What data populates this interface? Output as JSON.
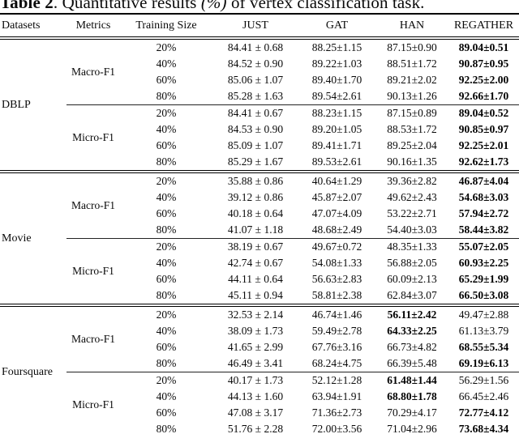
{
  "colors": {
    "background": "#ffffff",
    "ink": "#000000"
  },
  "title": {
    "bold": "Table 2",
    "mid": ". Quantitative results ",
    "pct": "(%)",
    "suffix": " of vertex classification task."
  },
  "table": {
    "headers": [
      "Datasets",
      "Metrics",
      "Training Size",
      "JUST",
      "GAT",
      "HAN",
      "REGATHER"
    ],
    "sections": [
      {
        "dataset": "DBLP",
        "blocks": [
          {
            "metric": "Macro-F1",
            "rows": [
              {
                "size": "20%",
                "values": [
                  "84.41 ± 0.68",
                  "88.25±1.15",
                  "87.15±0.90",
                  "89.04±0.51"
                ],
                "bold_index": 3
              },
              {
                "size": "40%",
                "values": [
                  "84.52 ± 0.90",
                  "89.22±1.03",
                  "88.51±1.72",
                  "90.87±0.95"
                ],
                "bold_index": 3
              },
              {
                "size": "60%",
                "values": [
                  "85.06 ± 1.07",
                  "89.40±1.70",
                  "89.21±2.02",
                  "92.25±2.00"
                ],
                "bold_index": 3
              },
              {
                "size": "80%",
                "values": [
                  "85.28 ± 1.63",
                  "89.54±2.61",
                  "90.13±1.26",
                  "92.66±1.70"
                ],
                "bold_index": 3
              }
            ]
          },
          {
            "metric": "Micro-F1",
            "rows": [
              {
                "size": "20%",
                "values": [
                  "84.41 ± 0.67",
                  "88.23±1.15",
                  "87.15±0.89",
                  "89.04±0.52"
                ],
                "bold_index": 3
              },
              {
                "size": "40%",
                "values": [
                  "84.53 ± 0.90",
                  "89.20±1.05",
                  "88.53±1.72",
                  "90.85±0.97"
                ],
                "bold_index": 3
              },
              {
                "size": "60%",
                "values": [
                  "85.09 ± 1.07",
                  "89.41±1.71",
                  "89.25±2.04",
                  "92.25±2.01"
                ],
                "bold_index": 3
              },
              {
                "size": "80%",
                "values": [
                  "85.29 ± 1.67",
                  "89.53±2.61",
                  "90.16±1.35",
                  "92.62±1.73"
                ],
                "bold_index": 3
              }
            ]
          }
        ]
      },
      {
        "dataset": "Movie",
        "blocks": [
          {
            "metric": "Macro-F1",
            "rows": [
              {
                "size": "20%",
                "values": [
                  "35.88 ± 0.86",
                  "40.64±1.29",
                  "39.36±2.82",
                  "46.87±4.04"
                ],
                "bold_index": 3
              },
              {
                "size": "40%",
                "values": [
                  "39.12 ± 0.86",
                  "45.87±2.07",
                  "49.62±2.43",
                  "54.68±3.03"
                ],
                "bold_index": 3
              },
              {
                "size": "60%",
                "values": [
                  "40.18 ± 0.64",
                  "47.07±4.09",
                  "53.22±2.71",
                  "57.94±2.72"
                ],
                "bold_index": 3
              },
              {
                "size": "80%",
                "values": [
                  "41.07 ± 1.18",
                  "48.68±2.49",
                  "54.40±3.03",
                  "58.44±3.82"
                ],
                "bold_index": 3
              }
            ]
          },
          {
            "metric": "Micro-F1",
            "rows": [
              {
                "size": "20%",
                "values": [
                  "38.19 ± 0.67",
                  "49.67±0.72",
                  "48.35±1.33",
                  "55.07±2.05"
                ],
                "bold_index": 3
              },
              {
                "size": "40%",
                "values": [
                  "42.74 ± 0.67",
                  "54.08±1.33",
                  "56.88±2.05",
                  "60.93±2.25"
                ],
                "bold_index": 3
              },
              {
                "size": "60%",
                "values": [
                  "44.11 ± 0.64",
                  "56.63±2.83",
                  "60.09±2.13",
                  "65.29±1.99"
                ],
                "bold_index": 3
              },
              {
                "size": "80%",
                "values": [
                  "45.11 ± 0.94",
                  "58.81±2.38",
                  "62.84±3.07",
                  "66.50±3.08"
                ],
                "bold_index": 3
              }
            ]
          }
        ]
      },
      {
        "dataset": "Foursquare",
        "blocks": [
          {
            "metric": "Macro-F1",
            "rows": [
              {
                "size": "20%",
                "values": [
                  "32.53 ± 2.14",
                  "46.74±1.46",
                  "56.11±2.42",
                  "49.47±2.88"
                ],
                "bold_index": 2
              },
              {
                "size": "40%",
                "values": [
                  "38.09 ± 1.73",
                  "59.49±2.78",
                  "64.33±2.25",
                  "61.13±3.79"
                ],
                "bold_index": 2
              },
              {
                "size": "60%",
                "values": [
                  "41.65 ± 2.99",
                  "67.76±3.16",
                  "66.73±4.82",
                  "68.55±5.34"
                ],
                "bold_index": 3
              },
              {
                "size": "80%",
                "values": [
                  "46.49 ± 3.41",
                  "68.24±4.75",
                  "66.39±5.48",
                  "69.19±6.13"
                ],
                "bold_index": 3
              }
            ]
          },
          {
            "metric": "Micro-F1",
            "rows": [
              {
                "size": "20%",
                "values": [
                  "40.17 ± 1.73",
                  "52.12±1.28",
                  "61.48±1.44",
                  "56.29±1.56"
                ],
                "bold_index": 2
              },
              {
                "size": "40%",
                "values": [
                  "44.13 ± 1.60",
                  "63.94±1.91",
                  "68.80±1.78",
                  "66.45±2.46"
                ],
                "bold_index": 2
              },
              {
                "size": "60%",
                "values": [
                  "47.08 ± 3.17",
                  "71.36±2.73",
                  "70.29±4.17",
                  "72.77±4.12"
                ],
                "bold_index": 3
              },
              {
                "size": "80%",
                "values": [
                  "51.76 ± 2.28",
                  "72.00±3.56",
                  "71.04±2.96",
                  "73.68±4.34"
                ],
                "bold_index": 3
              }
            ]
          }
        ]
      }
    ]
  }
}
